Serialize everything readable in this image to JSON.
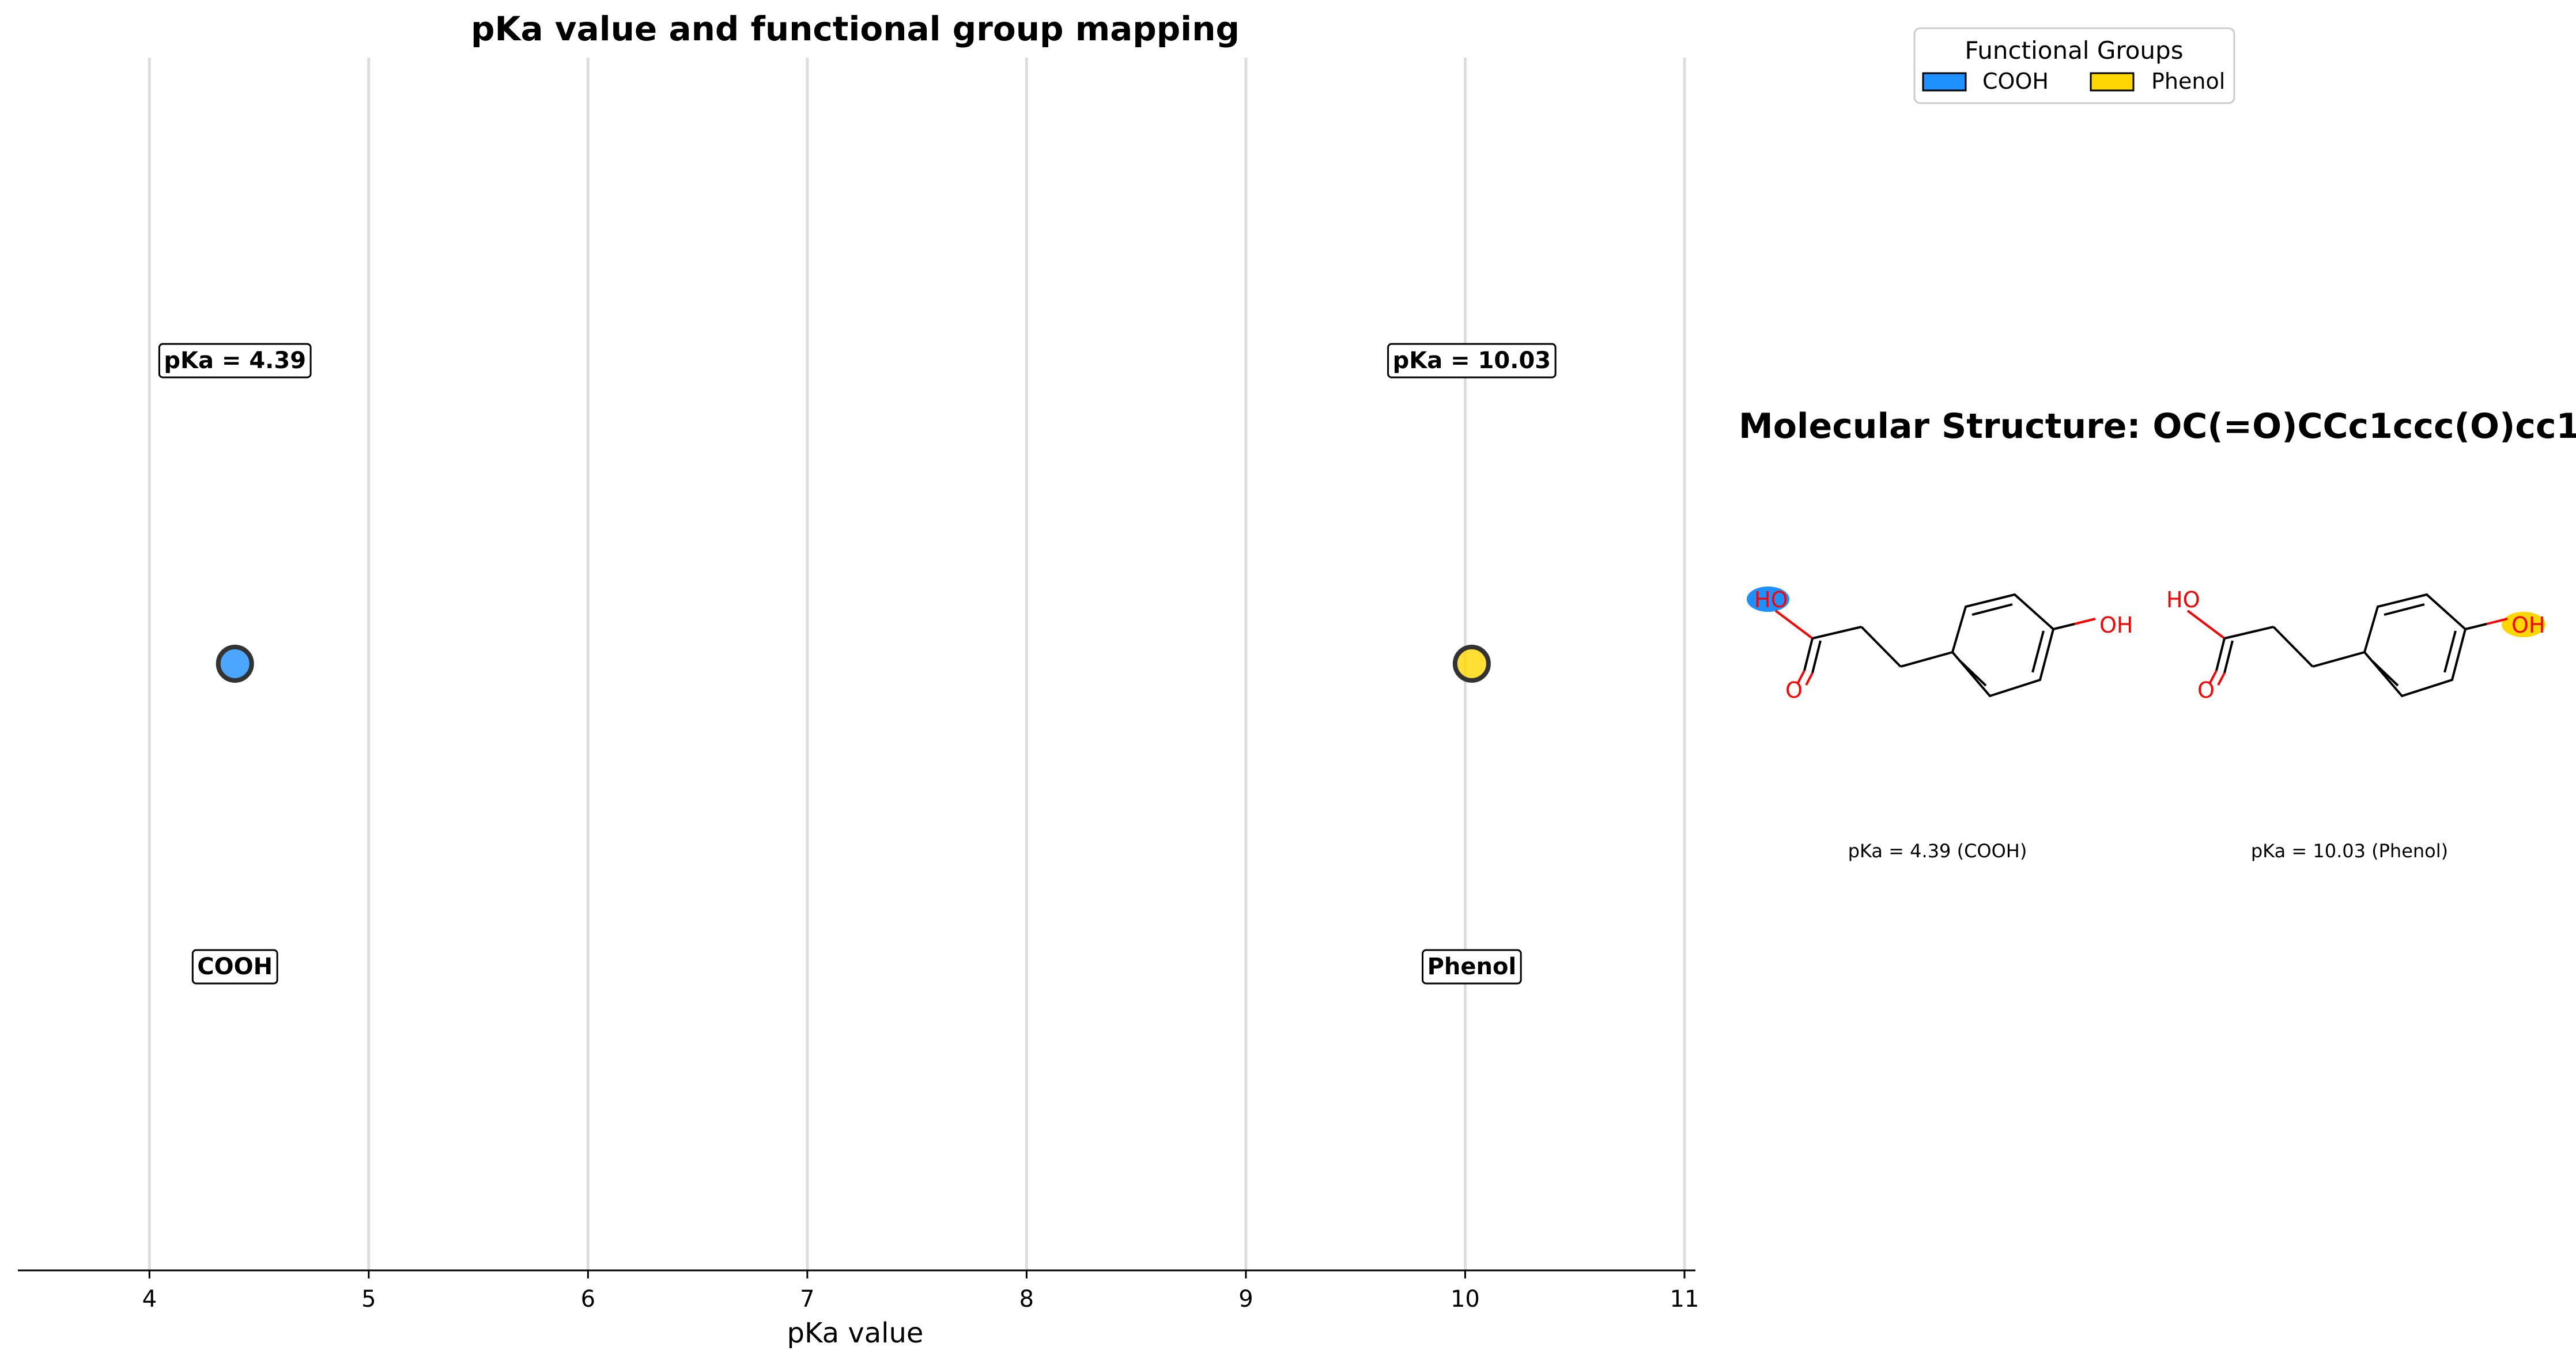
{
  "chart_data": {
    "type": "scatter",
    "title": "pKa value and functional group mapping",
    "xlabel": "pKa value",
    "ylabel": "",
    "xlim": [
      3.4,
      11.05
    ],
    "xticks": [
      4,
      5,
      6,
      7,
      8,
      9,
      10,
      11
    ],
    "grid": true,
    "grid_axis": "x",
    "points": [
      {
        "x": 4.39,
        "group": "COOH",
        "value_label": "pKa = 4.39",
        "group_label": "COOH",
        "color": "#1e90ff"
      },
      {
        "x": 10.03,
        "group": "Phenol",
        "value_label": "pKa = 10.03",
        "group_label": "Phenol",
        "color": "#ffd700"
      }
    ],
    "legend": {
      "title": "Functional Groups",
      "placement": "top-right",
      "entries": [
        {
          "label": "COOH",
          "color": "#1e90ff"
        },
        {
          "label": "Phenol",
          "color": "#ffd700"
        }
      ]
    }
  },
  "molecule": {
    "title": "Molecular Structure: OC(=O)CCc1ccc(O)cc1",
    "panels": [
      {
        "caption": "pKa = 4.39 (COOH)",
        "highlight": "COOH",
        "highlight_color": "#1e90ff",
        "hydroxyl_label": "HO",
        "oxo_label": "O",
        "phenol_label": "OH"
      },
      {
        "caption": "pKa = 10.03 (Phenol)",
        "highlight": "Phenol",
        "highlight_color": "#ffd700",
        "hydroxyl_label": "HO",
        "oxo_label": "O",
        "phenol_label": "OH"
      }
    ]
  }
}
